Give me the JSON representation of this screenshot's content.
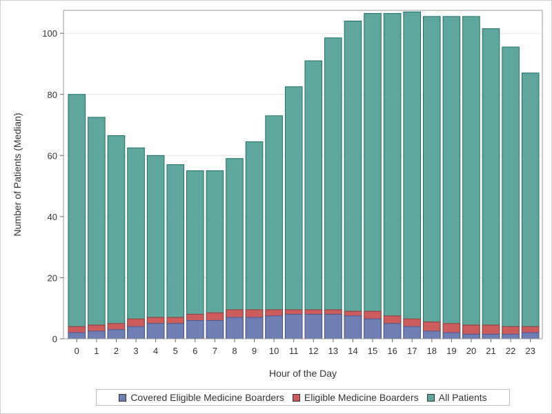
{
  "chart_data": {
    "type": "bar",
    "xlabel": "Hour of the Day",
    "ylabel": "Number of Patients (Median)",
    "ylim": [
      0,
      107.5
    ],
    "yticks": [
      0,
      20,
      40,
      60,
      80,
      100
    ],
    "grid": true,
    "legend_position": "bottom",
    "categories": [
      "0",
      "1",
      "2",
      "3",
      "4",
      "5",
      "6",
      "7",
      "8",
      "9",
      "10",
      "11",
      "12",
      "13",
      "14",
      "15",
      "16",
      "17",
      "18",
      "19",
      "20",
      "21",
      "22",
      "23"
    ],
    "series": [
      {
        "name": "All Patients",
        "color": "#5fa79d",
        "values": [
          80,
          72.5,
          66.5,
          62.5,
          60,
          57,
          55,
          55,
          59,
          64.5,
          73,
          82.5,
          91,
          98.5,
          104,
          106.5,
          106.5,
          107,
          105.5,
          105.5,
          105.5,
          101.5,
          95.5,
          87
        ]
      },
      {
        "name": "Eligible Medicine Boarders",
        "color": "#cd5c5c",
        "values": [
          4,
          4.5,
          5,
          6.5,
          7,
          7,
          8,
          8.5,
          9.5,
          9.5,
          9.5,
          9.5,
          9.5,
          9.5,
          9,
          9,
          7.5,
          6.5,
          5.5,
          5,
          4.5,
          4.5,
          4,
          4
        ]
      },
      {
        "name": "Covered Eligible Medicine Boarders",
        "color": "#6f7fb4",
        "values": [
          2,
          2.5,
          3,
          4,
          5,
          5,
          6,
          6,
          7,
          7,
          7.5,
          8,
          8,
          8,
          7.5,
          6.5,
          5,
          4,
          2.5,
          2,
          1.5,
          1.5,
          1.5,
          2
        ]
      }
    ]
  },
  "legend": {
    "items": [
      {
        "label": "Covered Eligible Medicine Boarders",
        "color": "#6f7fb4"
      },
      {
        "label": "Eligible Medicine Boarders",
        "color": "#cd5c5c"
      },
      {
        "label": "All Patients",
        "color": "#5fa79d"
      }
    ]
  }
}
